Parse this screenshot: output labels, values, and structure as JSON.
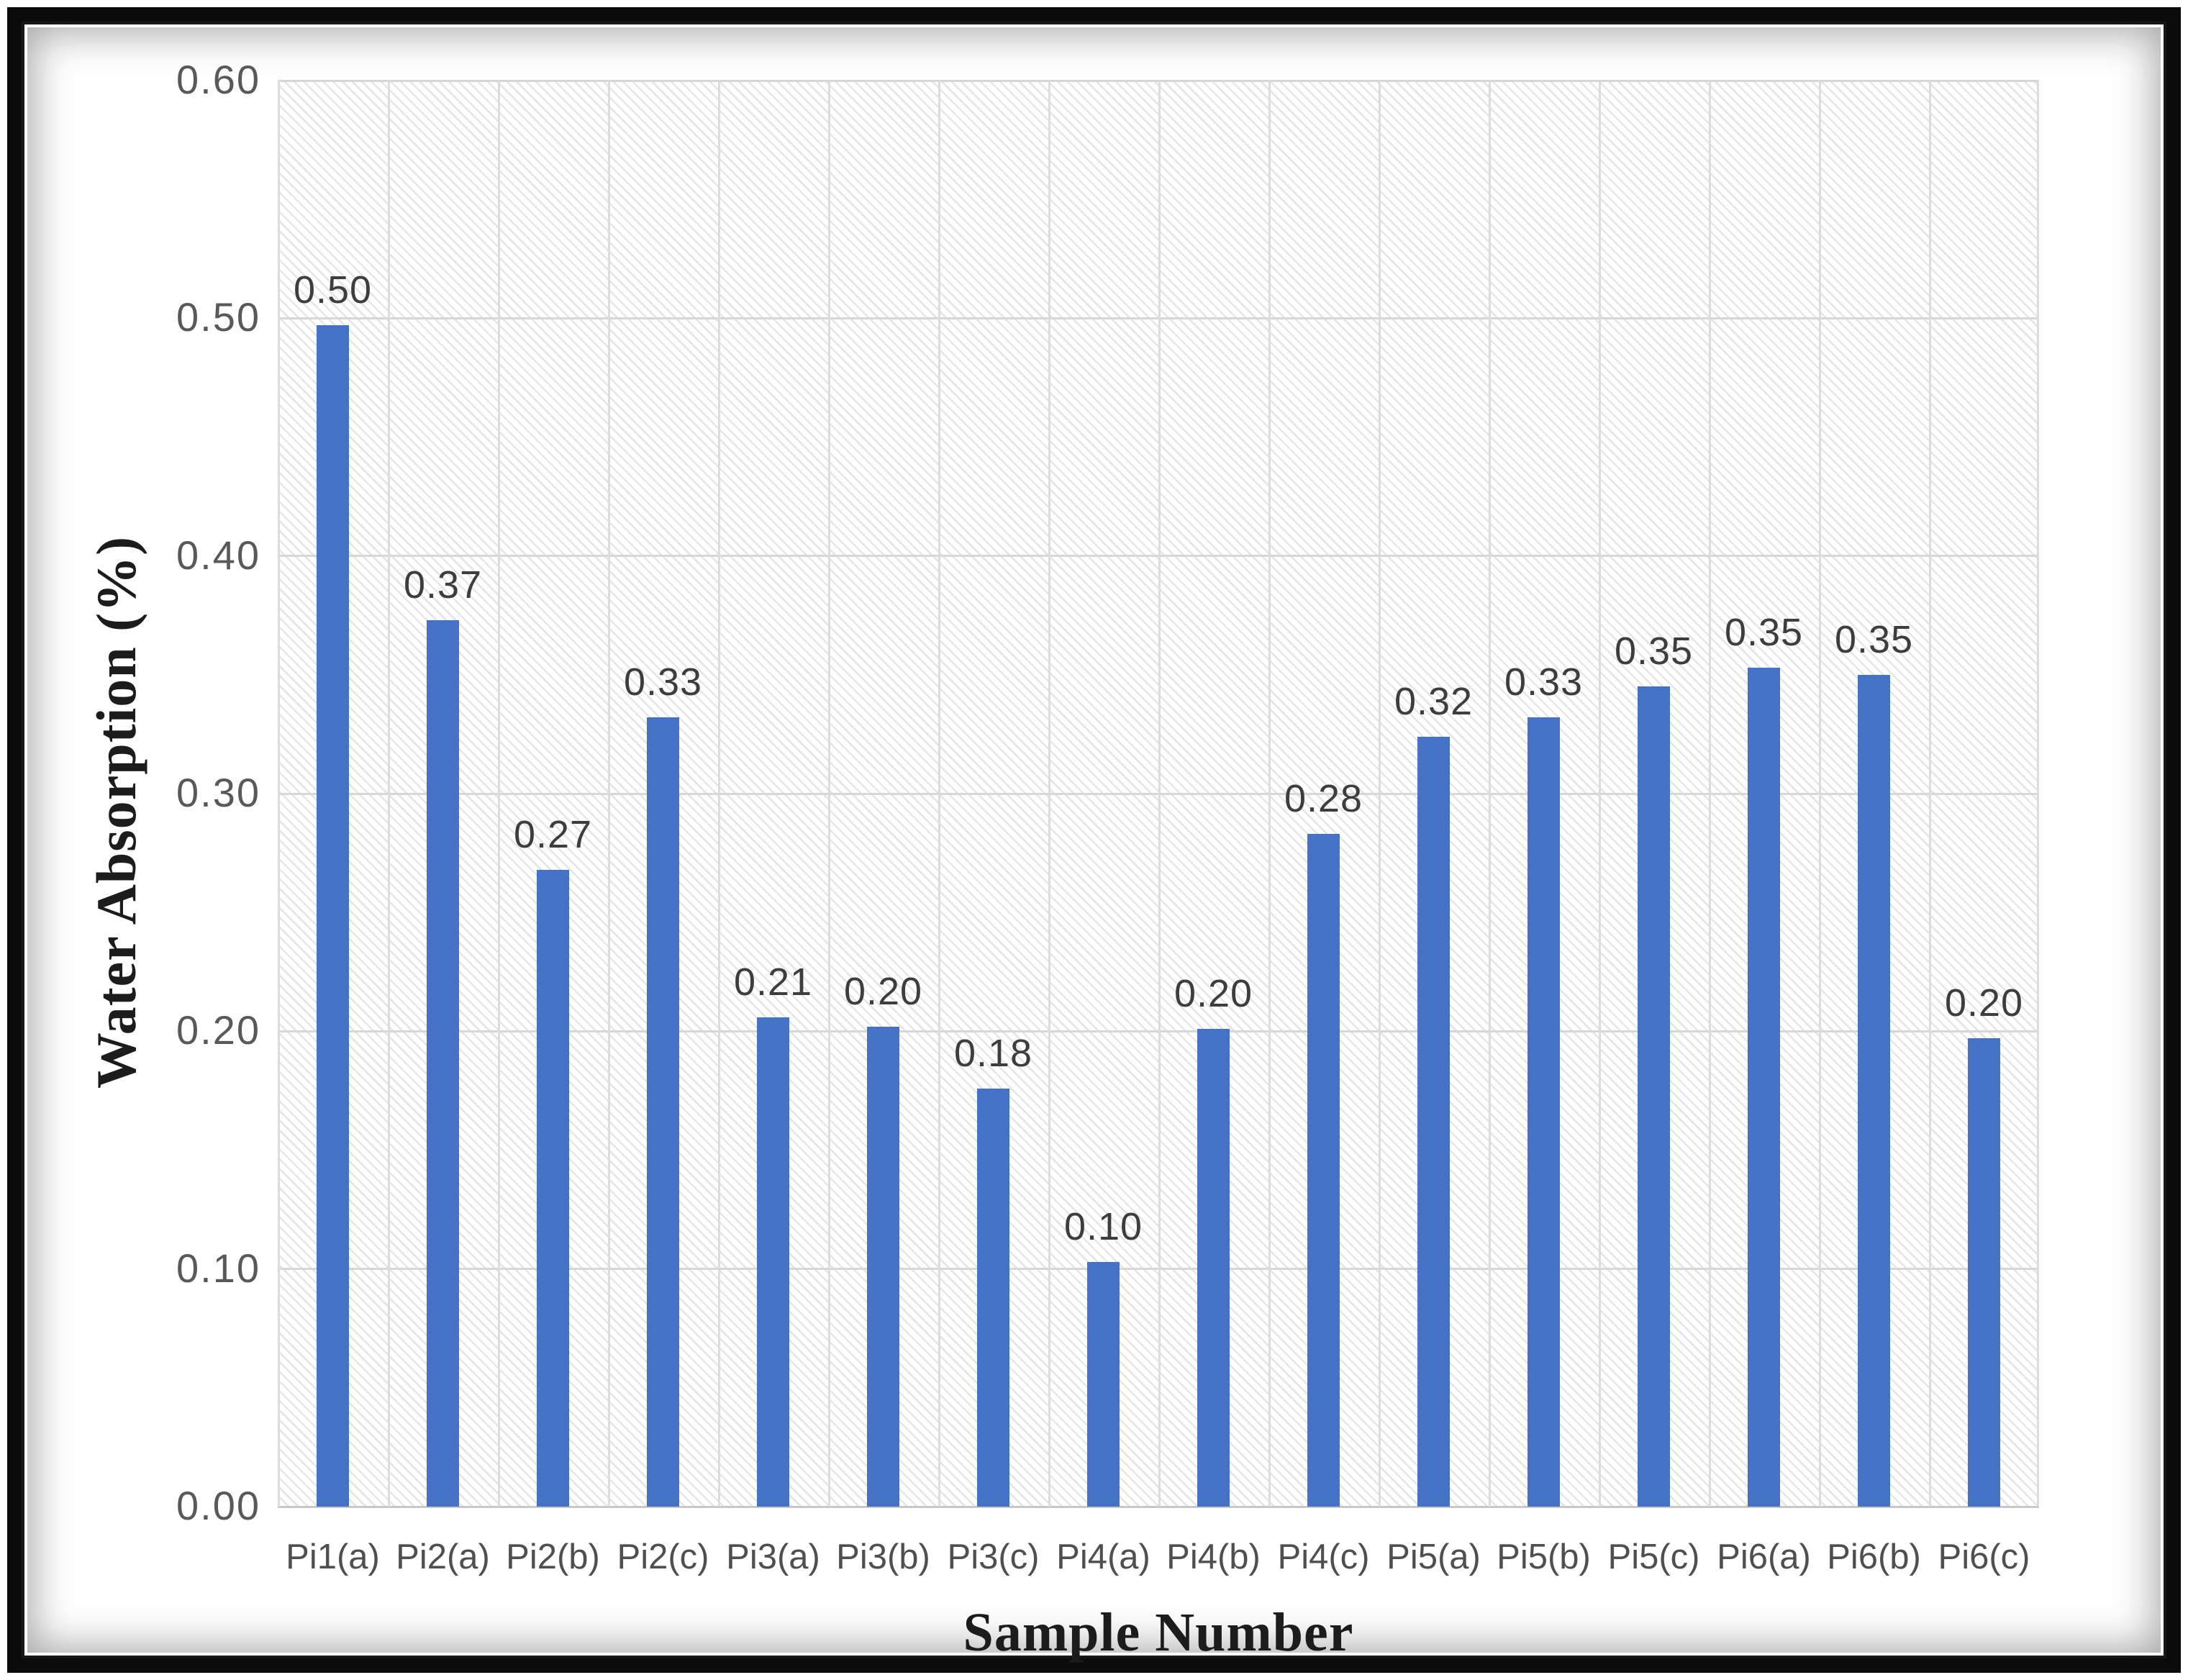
{
  "figure": {
    "frame_color": "#0b0b0b",
    "background_color": "#ffffff"
  },
  "chart_data": {
    "type": "bar",
    "title": "",
    "xlabel": "Sample Number",
    "ylabel": "Water Absorption (%)",
    "categories": [
      "Pi1(a)",
      "Pi2(a)",
      "Pi2(b)",
      "Pi2(c)",
      "Pi3(a)",
      "Pi3(b)",
      "Pi3(c)",
      "Pi4(a)",
      "Pi4(b)",
      "Pi4(c)",
      "Pi5(a)",
      "Pi5(b)",
      "Pi5(c)",
      "Pi6(a)",
      "Pi6(b)",
      "Pi6(c)"
    ],
    "values": [
      0.5,
      0.37,
      0.27,
      0.33,
      0.21,
      0.2,
      0.18,
      0.1,
      0.2,
      0.28,
      0.32,
      0.33,
      0.35,
      0.35,
      0.35,
      0.2
    ],
    "value_labels": [
      "0.50",
      "0.37",
      "0.27",
      "0.33",
      "0.21",
      "0.20",
      "0.18",
      "0.10",
      "0.20",
      "0.28",
      "0.32",
      "0.33",
      "0.35",
      "0.35",
      "0.35",
      "0.20"
    ],
    "bar_heights": [
      0.497,
      0.373,
      0.268,
      0.332,
      0.206,
      0.202,
      0.176,
      0.103,
      0.201,
      0.283,
      0.324,
      0.332,
      0.345,
      0.353,
      0.35,
      0.197
    ],
    "ylim": [
      0.0,
      0.6
    ],
    "ytick_step": 0.1,
    "ytick_labels": [
      "0.00",
      "0.10",
      "0.20",
      "0.30",
      "0.40",
      "0.50",
      "0.60"
    ],
    "grid": "horizontal and vertical gridlines, light gray",
    "plot_background": "white with light gray diagonal hatch pattern",
    "legend": "none",
    "bar_color": "#4472C4",
    "gridline_color": "#d7d7d7",
    "tick_label_color": "#595959",
    "data_label_color": "#3d3d3d",
    "axis_title_color": "#1c1c1c"
  }
}
